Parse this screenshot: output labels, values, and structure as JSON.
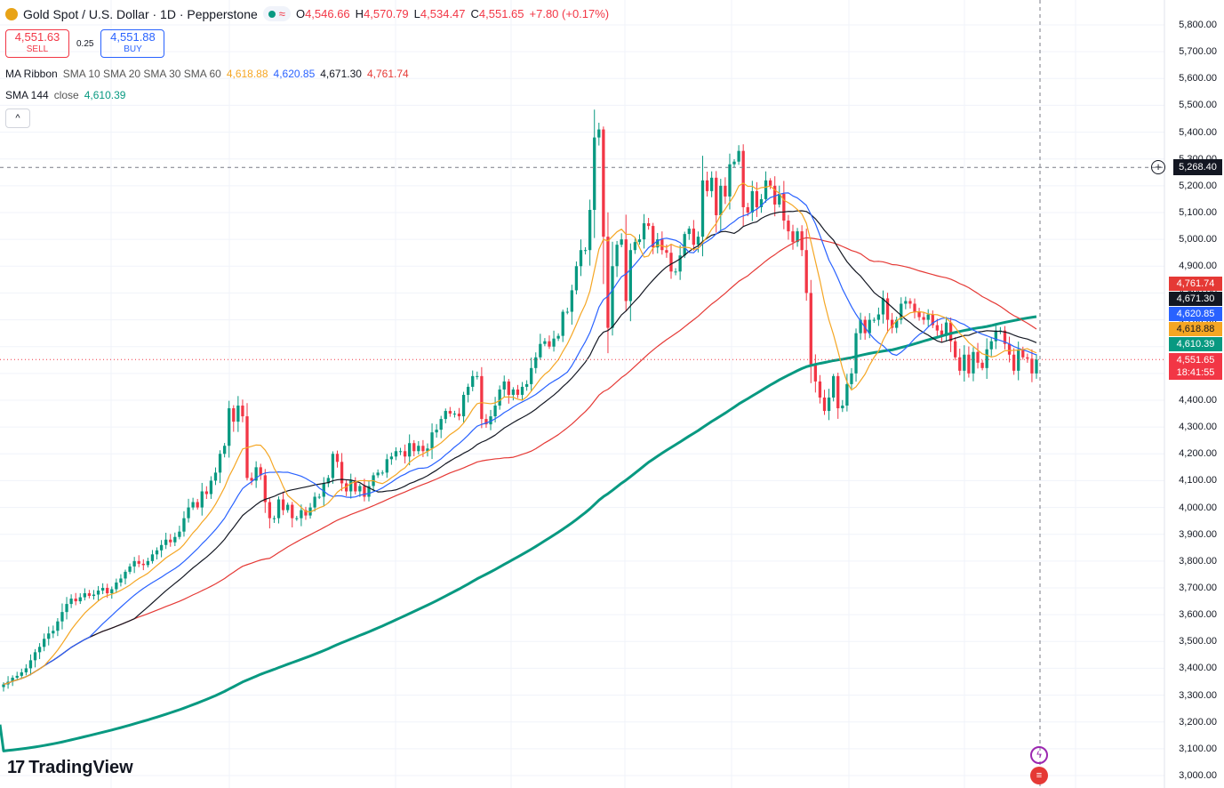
{
  "header": {
    "symbol_title": "Gold Spot / U.S. Dollar · 1D · Pepperstone",
    "wave_glyph": "≈",
    "ohlc": {
      "o_label": "O",
      "o": "4,546.66",
      "h_label": "H",
      "h": "4,570.79",
      "l_label": "L",
      "l": "4,534.47",
      "c_label": "C",
      "c": "4,551.65",
      "change": "+7.80 (+0.17%)"
    }
  },
  "trade": {
    "sell_price": "4,551.63",
    "sell_label": "SELL",
    "spread": "0.25",
    "buy_price": "4,551.88",
    "buy_label": "BUY"
  },
  "indicators": {
    "ribbon": {
      "name": "MA Ribbon",
      "params": "SMA 10 SMA 20 SMA 30 SMA 60",
      "v1": "4,618.88",
      "v2": "4,620.85",
      "v3": "4,671.30",
      "v4": "4,761.74"
    },
    "sma144": {
      "name": "SMA 144",
      "params": "close",
      "value": "4,610.39"
    }
  },
  "collapse_glyph": "^",
  "branding": {
    "logo_mark": "17",
    "name": "TradingView"
  },
  "axis": {
    "ticks": [
      "5,800.00",
      "5,700.00",
      "5,600.00",
      "5,500.00",
      "5,400.00",
      "5,300.00",
      "5,200.00",
      "5,100.00",
      "5,000.00",
      "4,900.00",
      "4,800.00",
      "4,700.00",
      "4,600.00",
      "4,500.00",
      "4,400.00",
      "4,300.00",
      "4,200.00",
      "4,100.00",
      "4,000.00",
      "3,900.00",
      "3,800.00",
      "3,700.00",
      "3,600.00",
      "3,500.00",
      "3,400.00",
      "3,300.00",
      "3,200.00",
      "3,100.00",
      "3,000.00"
    ],
    "crosshair_price": "5,268.40",
    "labels": {
      "sma60": "4,761.74",
      "sma30": "4,671.30",
      "sma20": "4,620.85",
      "sma10": "4,618.88",
      "sma144": "4,610.39",
      "last": "4,551.65",
      "countdown": "18:41:55"
    }
  },
  "colors": {
    "up": "#089981",
    "down": "#f23645",
    "sma10": "#f5a623",
    "sma20": "#2962ff",
    "sma30": "#131722",
    "sma60": "#e53935",
    "sma144": "#089981"
  },
  "chart_data": {
    "type": "candlestick",
    "title": "Gold Spot / U.S. Dollar · 1D · Pepperstone",
    "ylim": [
      2980,
      5860
    ],
    "grid": true,
    "closes": [
      3340,
      3350,
      3365,
      3372,
      3385,
      3400,
      3430,
      3460,
      3480,
      3510,
      3530,
      3540,
      3575,
      3610,
      3640,
      3660,
      3650,
      3665,
      3680,
      3670,
      3675,
      3690,
      3700,
      3680,
      3695,
      3720,
      3735,
      3760,
      3780,
      3800,
      3790,
      3785,
      3800,
      3825,
      3840,
      3860,
      3880,
      3870,
      3890,
      3910,
      3960,
      4000,
      4020,
      4000,
      4060,
      4050,
      4100,
      4130,
      4200,
      4230,
      4370,
      4320,
      4380,
      4340,
      4110,
      4100,
      4150,
      4120,
      4020,
      3960,
      3960,
      4030,
      3990,
      4010,
      3960,
      3960,
      3990,
      3970,
      4000,
      4040,
      4040,
      4090,
      4110,
      4200,
      4170,
      4090,
      4060,
      4100,
      4060,
      4080,
      4040,
      4080,
      4120,
      4130,
      4130,
      4180,
      4190,
      4210,
      4210,
      4190,
      4240,
      4210,
      4230,
      4210,
      4220,
      4280,
      4290,
      4330,
      4360,
      4350,
      4350,
      4340,
      4420,
      4450,
      4490,
      4490,
      4330,
      4310,
      4340,
      4380,
      4440,
      4470,
      4420,
      4440,
      4420,
      4450,
      4460,
      4520,
      4560,
      4610,
      4620,
      4600,
      4630,
      4640,
      4730,
      4730,
      4810,
      4900,
      4960,
      4960,
      5110,
      5380,
      5410,
      5010,
      4670,
      4900,
      4980,
      5000,
      4770,
      4960,
      4990,
      5000,
      5060,
      5050,
      4970,
      5000,
      4960,
      4950,
      4880,
      4880,
      4940,
      5020,
      5040,
      4980,
      5010,
      5220,
      5180,
      5230,
      5090,
      5200,
      5160,
      5280,
      5290,
      5330,
      5120,
      5100,
      5180,
      5120,
      5150,
      5220,
      5200,
      5130,
      5170,
      5070,
      5030,
      4990,
      5030,
      4960,
      4800,
      4530,
      4470,
      4410,
      4360,
      4410,
      4490,
      4370,
      4380,
      4460,
      4500,
      4650,
      4700,
      4650,
      4700,
      4700,
      4720,
      4780,
      4700,
      4670,
      4700,
      4760,
      4770,
      4760,
      4730,
      4710,
      4700,
      4720,
      4680,
      4660,
      4640,
      4690,
      4620,
      4560,
      4510,
      4570,
      4500,
      4580,
      4540,
      4520,
      4590,
      4620,
      4660,
      4660,
      4610,
      4570,
      4510,
      4590,
      4560,
      4555,
      4500,
      4551.65
    ],
    "series": [
      {
        "name": "SMA 10",
        "last": 4618.88
      },
      {
        "name": "SMA 20",
        "last": 4620.85
      },
      {
        "name": "SMA 30",
        "last": 4671.3
      },
      {
        "name": "SMA 60",
        "last": 4761.74
      },
      {
        "name": "SMA 144",
        "last": 4610.39
      }
    ]
  }
}
